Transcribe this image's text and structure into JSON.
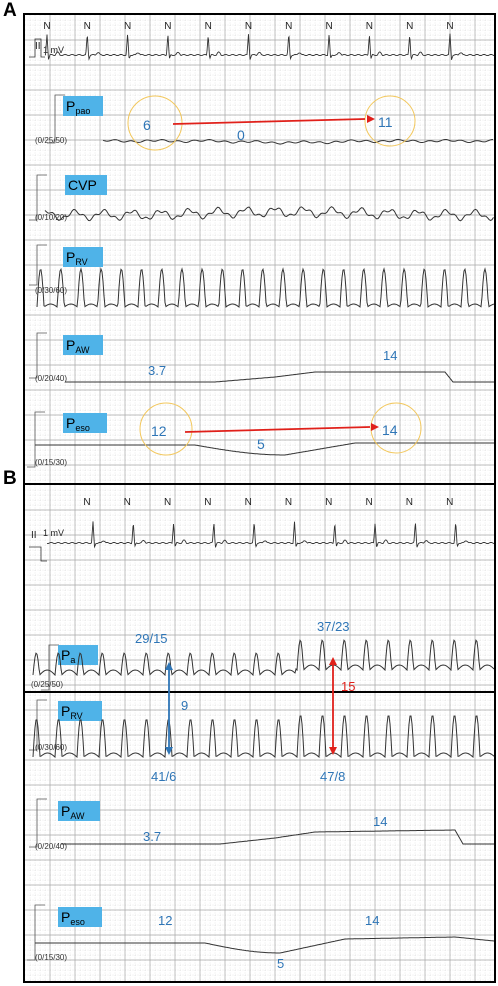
{
  "panels": [
    {
      "letter": "A",
      "ecg": {
        "lead": "II",
        "scale": "1 mV",
        "beat_label": "N"
      },
      "channels": [
        {
          "id": "ppao",
          "label": "P",
          "sub": "pao",
          "scale": "(0/25/50)",
          "values": [
            {
              "text": "6",
              "color": "#2e75b6"
            },
            {
              "text": "0",
              "color": "#2e75b6"
            },
            {
              "text": "11",
              "color": "#2e75b6"
            }
          ]
        },
        {
          "id": "cvp",
          "label": "CVP",
          "sub": "",
          "scale": "(0/10/20)",
          "values": []
        },
        {
          "id": "prv",
          "label": "P",
          "sub": "RV",
          "scale": "(0/30/60)",
          "values": []
        },
        {
          "id": "paw",
          "label": "P",
          "sub": "AW",
          "scale": "(0/20/40)",
          "values": [
            {
              "text": "3.7",
              "color": "#2e75b6"
            },
            {
              "text": "14",
              "color": "#2e75b6"
            }
          ]
        },
        {
          "id": "peso",
          "label": "P",
          "sub": "eso",
          "scale": "(0/15/30)",
          "values": [
            {
              "text": "12",
              "color": "#2e75b6"
            },
            {
              "text": "5",
              "color": "#2e75b6"
            },
            {
              "text": "14",
              "color": "#2e75b6"
            }
          ]
        }
      ]
    },
    {
      "letter": "B",
      "ecg": {
        "lead": "II",
        "scale": "1 mV",
        "beat_label": "N"
      },
      "channels": [
        {
          "id": "pa",
          "label": "P",
          "sub": "a",
          "scale": "(0/25/50)",
          "values": [
            {
              "text": "29/15",
              "color": "#2e75b6"
            },
            {
              "text": "37/23",
              "color": "#2e75b6"
            },
            {
              "text": "15",
              "color": "#e0201a"
            }
          ]
        },
        {
          "id": "prv",
          "label": "P",
          "sub": "RV",
          "scale": "(0/30/60)",
          "values": [
            {
              "text": "9",
              "color": "#2e75b6"
            },
            {
              "text": "41/6",
              "color": "#2e75b6"
            },
            {
              "text": "47/8",
              "color": "#2e75b6"
            }
          ]
        },
        {
          "id": "paw",
          "label": "P",
          "sub": "AW",
          "scale": "(0/20/40)",
          "values": [
            {
              "text": "3.7",
              "color": "#2e75b6"
            },
            {
              "text": "14",
              "color": "#2e75b6"
            }
          ]
        },
        {
          "id": "peso",
          "label": "P",
          "sub": "eso",
          "scale": "(0/15/30)",
          "values": [
            {
              "text": "12",
              "color": "#2e75b6"
            },
            {
              "text": "5",
              "color": "#2e75b6"
            },
            {
              "text": "14",
              "color": "#2e75b6"
            }
          ]
        }
      ]
    }
  ],
  "colors": {
    "label_box": "#4fb3e8",
    "value_blue": "#2e75b6",
    "arrow_red": "#e0201a",
    "arrow_blue": "#2e75b6",
    "circle": "#f2c75c",
    "grid": "#b8b8b8",
    "trace": "#333333"
  }
}
